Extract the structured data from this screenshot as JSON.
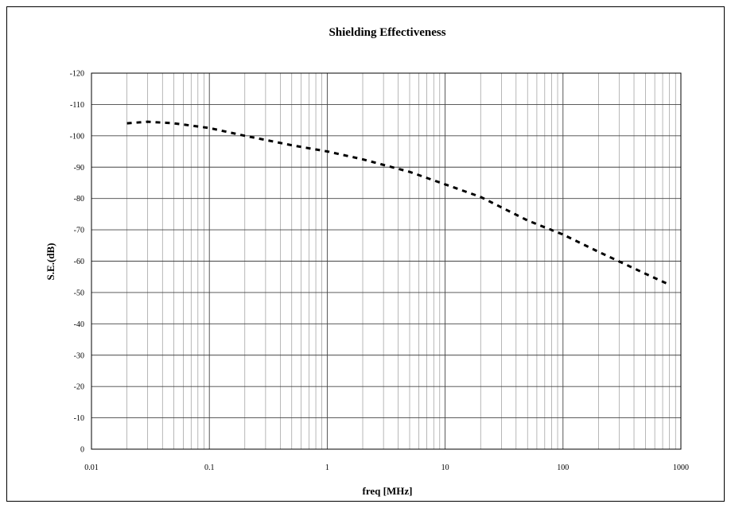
{
  "chart_data": {
    "type": "line",
    "title": "Shielding Effectiveness",
    "xlabel": "freq [MHz]",
    "ylabel": "S.E.(dB)",
    "x_scale": "log",
    "xlim": [
      0.01,
      1000
    ],
    "ylim": [
      0,
      -120
    ],
    "x_ticks": [
      0.01,
      0.1,
      1,
      10,
      100,
      1000
    ],
    "x_tick_labels": [
      "0.01",
      "0.1",
      "1",
      "10",
      "100",
      "1000"
    ],
    "y_ticks": [
      0,
      -10,
      -20,
      -30,
      -40,
      -50,
      -60,
      -70,
      -80,
      -90,
      -100,
      -110,
      -120
    ],
    "y_tick_labels": [
      "0",
      "-10",
      "-20",
      "-30",
      "-40",
      "-50",
      "-60",
      "-70",
      "-80",
      "-90",
      "-100",
      "-110",
      "-120"
    ],
    "grid": true,
    "legend": "none",
    "series": [
      {
        "x": [
          0.02,
          0.03,
          0.05,
          0.1,
          0.2,
          0.5,
          1,
          2,
          5,
          10,
          20,
          50,
          100,
          200,
          500,
          800
        ],
        "y": [
          -104,
          -104.5,
          -104,
          -102.5,
          -100,
          -97,
          -95,
          -92.5,
          -88.5,
          -84.5,
          -80.5,
          -73,
          -68.5,
          -63,
          -56,
          -52.5
        ],
        "color": "#000000",
        "style": "dashed"
      }
    ]
  }
}
